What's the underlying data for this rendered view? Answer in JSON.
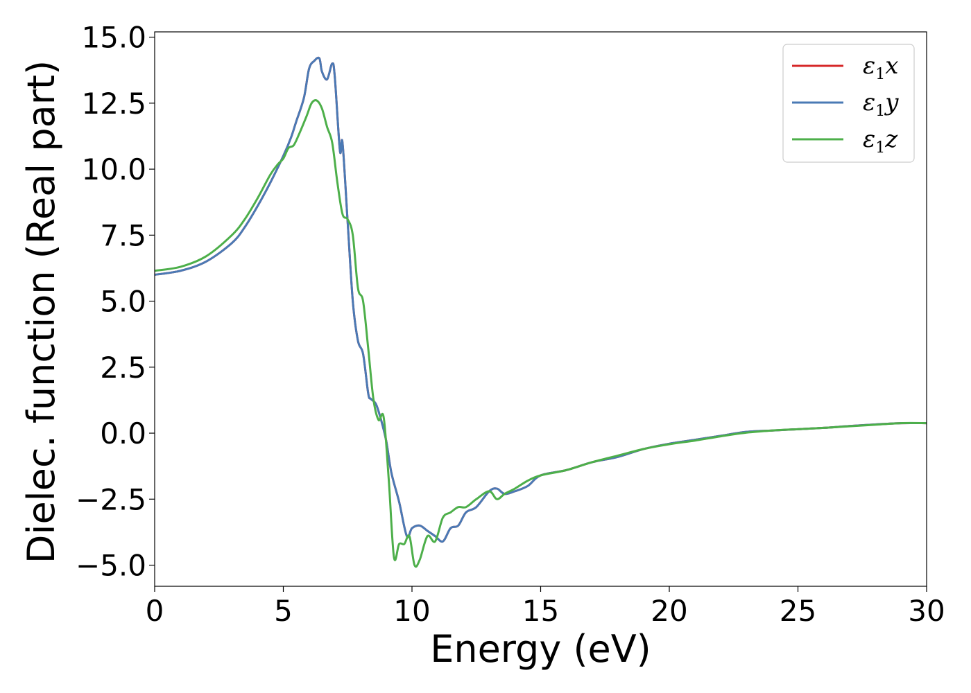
{
  "chart_data": {
    "type": "line",
    "xlabel": "Energy (eV)",
    "ylabel": "Dielec. function (Real part)",
    "xlim": [
      0,
      30
    ],
    "ylim": [
      -5.8,
      15.2
    ],
    "xticks": [
      0,
      5,
      10,
      15,
      20,
      25,
      30
    ],
    "xtick_labels": [
      "0",
      "5",
      "10",
      "15",
      "20",
      "25",
      "30"
    ],
    "yticks": [
      -5.0,
      -2.5,
      0.0,
      2.5,
      5.0,
      7.5,
      10.0,
      12.5,
      15.0
    ],
    "ytick_labels": [
      "−5.0",
      "−2.5",
      "0.0",
      "2.5",
      "5.0",
      "7.5",
      "10.0",
      "12.5",
      "15.0"
    ],
    "grid": false,
    "legend_position": "top-right",
    "series": [
      {
        "name": "ε",
        "subscript": "1",
        "suffix": "x",
        "color": "#d62728",
        "x": [
          0,
          1,
          2,
          3,
          3.5,
          4,
          4.5,
          5,
          5.3,
          5.5,
          5.8,
          6.0,
          6.2,
          6.4,
          6.5,
          6.7,
          6.9,
          7.0,
          7.2,
          7.3,
          7.5,
          7.7,
          7.9,
          8.1,
          8.3,
          8.4,
          8.6,
          8.8,
          9.0,
          9.2,
          9.5,
          9.8,
          10.0,
          10.3,
          10.6,
          10.9,
          11.2,
          11.5,
          11.8,
          12.1,
          12.5,
          13.0,
          13.3,
          13.6,
          14.0,
          14.5,
          15.0,
          16.0,
          17.0,
          18.0,
          19.0,
          20.0,
          21.0,
          22.0,
          23.0,
          24.0,
          25.0,
          26.0,
          27.0,
          28.0,
          29.0,
          30.0
        ],
        "y": [
          6.0,
          6.15,
          6.5,
          7.2,
          7.8,
          8.6,
          9.5,
          10.5,
          11.2,
          11.8,
          12.7,
          13.8,
          14.1,
          14.2,
          13.7,
          13.4,
          14.0,
          13.5,
          10.7,
          11.0,
          8.0,
          5.0,
          3.5,
          3.0,
          1.5,
          1.3,
          1.1,
          0.5,
          -0.3,
          -1.5,
          -2.6,
          -3.9,
          -3.6,
          -3.5,
          -3.7,
          -3.9,
          -4.1,
          -3.6,
          -3.5,
          -3.0,
          -2.8,
          -2.2,
          -2.1,
          -2.3,
          -2.2,
          -2.0,
          -1.6,
          -1.4,
          -1.1,
          -0.9,
          -0.6,
          -0.4,
          -0.25,
          -0.1,
          0.05,
          0.1,
          0.15,
          0.2,
          0.27,
          0.33,
          0.38,
          0.38
        ]
      },
      {
        "name": "ε",
        "subscript": "1",
        "suffix": "y",
        "color": "#4a7ab5",
        "x": [
          0,
          1,
          2,
          3,
          3.5,
          4,
          4.5,
          5,
          5.3,
          5.5,
          5.8,
          6.0,
          6.2,
          6.4,
          6.5,
          6.7,
          6.9,
          7.0,
          7.2,
          7.3,
          7.5,
          7.7,
          7.9,
          8.1,
          8.3,
          8.4,
          8.6,
          8.8,
          9.0,
          9.2,
          9.5,
          9.8,
          10.0,
          10.3,
          10.6,
          10.9,
          11.2,
          11.5,
          11.8,
          12.1,
          12.5,
          13.0,
          13.3,
          13.6,
          14.0,
          14.5,
          15.0,
          16.0,
          17.0,
          18.0,
          19.0,
          20.0,
          21.0,
          22.0,
          23.0,
          24.0,
          25.0,
          26.0,
          27.0,
          28.0,
          29.0,
          30.0
        ],
        "y": [
          6.0,
          6.15,
          6.5,
          7.2,
          7.8,
          8.6,
          9.5,
          10.5,
          11.2,
          11.8,
          12.7,
          13.8,
          14.1,
          14.2,
          13.7,
          13.4,
          14.0,
          13.5,
          10.7,
          11.0,
          8.0,
          5.0,
          3.5,
          3.0,
          1.5,
          1.3,
          1.1,
          0.5,
          -0.3,
          -1.5,
          -2.6,
          -3.9,
          -3.6,
          -3.5,
          -3.7,
          -3.9,
          -4.1,
          -3.6,
          -3.5,
          -3.0,
          -2.8,
          -2.2,
          -2.1,
          -2.3,
          -2.2,
          -2.0,
          -1.6,
          -1.4,
          -1.1,
          -0.9,
          -0.6,
          -0.4,
          -0.25,
          -0.1,
          0.05,
          0.1,
          0.15,
          0.2,
          0.27,
          0.33,
          0.38,
          0.38
        ]
      },
      {
        "name": "ε",
        "subscript": "1",
        "suffix": "z",
        "color": "#4daf4a",
        "x": [
          0,
          1,
          2,
          3,
          3.5,
          4,
          4.5,
          4.8,
          5.0,
          5.2,
          5.4,
          5.6,
          5.9,
          6.1,
          6.3,
          6.5,
          6.7,
          6.9,
          7.1,
          7.3,
          7.5,
          7.7,
          7.9,
          8.1,
          8.3,
          8.5,
          8.7,
          8.9,
          9.1,
          9.3,
          9.5,
          9.7,
          9.9,
          10.1,
          10.3,
          10.6,
          10.9,
          11.2,
          11.5,
          11.8,
          12.1,
          12.5,
          13.0,
          13.3,
          13.6,
          14.0,
          14.5,
          15.0,
          16.0,
          17.0,
          18.0,
          19.0,
          20.0,
          21.0,
          22.0,
          23.0,
          24.0,
          25.0,
          26.0,
          27.0,
          28.0,
          29.0,
          30.0
        ],
        "y": [
          6.15,
          6.3,
          6.7,
          7.5,
          8.1,
          8.9,
          9.8,
          10.2,
          10.4,
          10.8,
          10.9,
          11.3,
          12.0,
          12.5,
          12.6,
          12.3,
          11.6,
          11.0,
          9.5,
          8.3,
          8.1,
          7.5,
          5.5,
          5.0,
          3.2,
          1.3,
          0.5,
          0.6,
          -1.8,
          -4.7,
          -4.2,
          -4.2,
          -3.9,
          -5.0,
          -4.8,
          -3.9,
          -4.1,
          -3.2,
          -3.0,
          -2.8,
          -2.8,
          -2.5,
          -2.2,
          -2.5,
          -2.3,
          -2.1,
          -1.8,
          -1.6,
          -1.4,
          -1.1,
          -0.85,
          -0.6,
          -0.42,
          -0.28,
          -0.12,
          0.02,
          0.1,
          0.15,
          0.2,
          0.26,
          0.32,
          0.38,
          0.38
        ]
      }
    ]
  }
}
